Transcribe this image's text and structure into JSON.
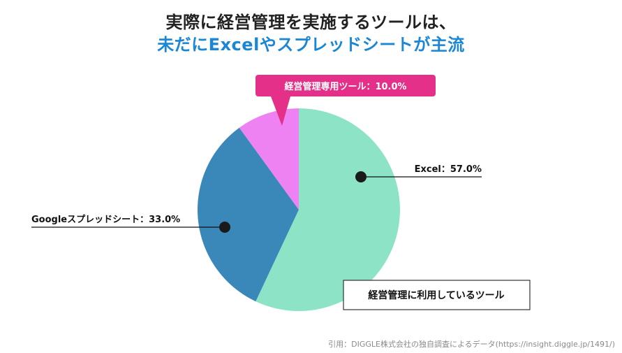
{
  "title_line1": "実際に経営管理を実施するツールは、",
  "title_line2": "未だにExcelやスプレッドシートが主流",
  "chart_data": {
    "type": "pie",
    "title": "経営管理に利用しているツール",
    "slices": [
      {
        "name": "Excel",
        "value": 57.0,
        "label": "Excel：57.0%",
        "color": "#8de3c6"
      },
      {
        "name": "Googleスプレッドシート",
        "value": 33.0,
        "label": "Googleスプレッドシート：33.0%",
        "color": "#3a87ba"
      },
      {
        "name": "経営管理専用ツール",
        "value": 10.0,
        "label": "経営管理専用ツール：10.0%",
        "color": "#ee82f2"
      }
    ],
    "highlight_color": "#e5308a"
  },
  "source": "引用：DIGGLE株式会社の独自調査によるデータ(https://insight.diggle.jp/1491/)"
}
